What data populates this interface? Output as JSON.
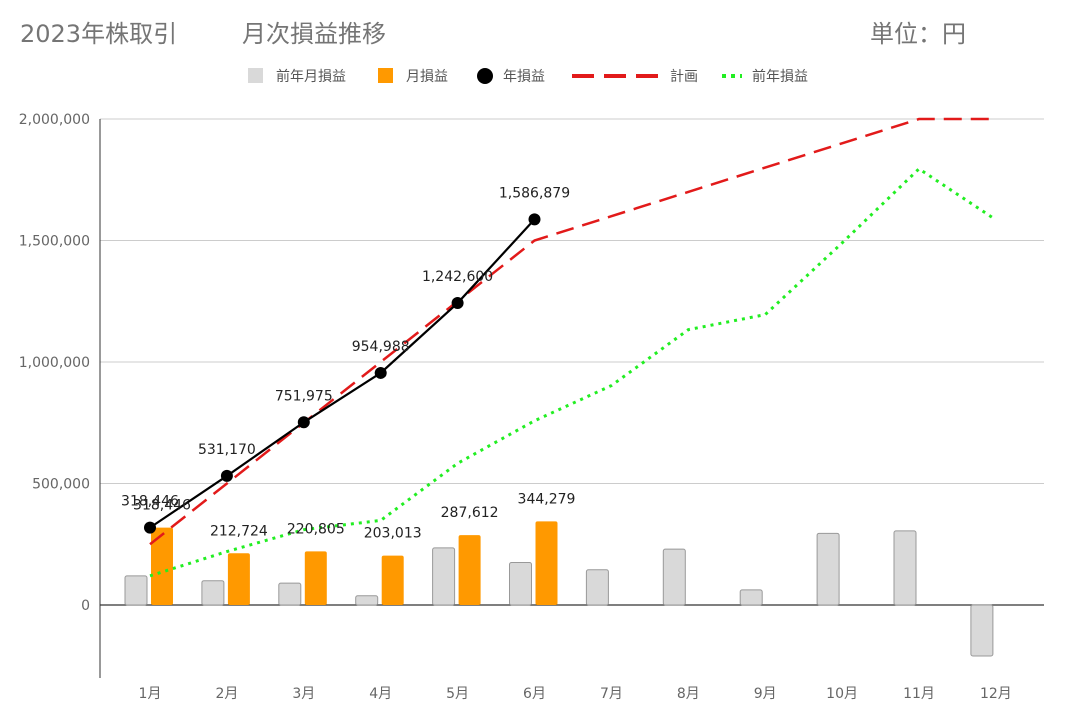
{
  "header": {
    "title": "2023年株取引",
    "subtitle": "月次損益推移",
    "unit": "単位：円"
  },
  "colors": {
    "prev_month": "#d9d9d9",
    "month": "#ff9900",
    "year": "#000000",
    "plan": "#e21a1a",
    "prev_year": "#22ee22"
  },
  "chart_data": {
    "type": "bar",
    "title": "2023年株取引　月次損益推移",
    "unit_label": "単位：円",
    "categories": [
      "1月",
      "2月",
      "3月",
      "4月",
      "5月",
      "6月",
      "7月",
      "8月",
      "9月",
      "10月",
      "11月",
      "12月"
    ],
    "ylim": [
      -300000,
      2000000
    ],
    "yticks": [
      0,
      500000,
      1000000,
      1500000,
      2000000
    ],
    "ytick_labels": [
      "0",
      "500,000",
      "1,000,000",
      "1,500,000",
      "2,000,000"
    ],
    "grid": true,
    "legend_position": "top",
    "series": [
      {
        "name": "前年月損益",
        "type": "bar",
        "values": [
          120000,
          100000,
          90000,
          38000,
          235000,
          175000,
          145000,
          230000,
          62000,
          295000,
          305000,
          -210000
        ]
      },
      {
        "name": "月損益",
        "type": "bar",
        "values": [
          318446,
          212724,
          220805,
          203013,
          287612,
          344279,
          null,
          null,
          null,
          null,
          null,
          null
        ],
        "labels": [
          "318,446",
          "212,724",
          "220,805",
          "203,013",
          "287,612",
          "344,279"
        ]
      },
      {
        "name": "年損益",
        "type": "line-marker",
        "values": [
          318446,
          531170,
          751975,
          954988,
          1242600,
          1586879,
          null,
          null,
          null,
          null,
          null,
          null
        ],
        "labels": [
          "318,446",
          "531,170",
          "751,975",
          "954,988",
          "1,242,600",
          "1,586,879"
        ]
      },
      {
        "name": "計画",
        "type": "line-dashed",
        "values": [
          250000,
          500000,
          750000,
          1000000,
          1250000,
          1500000,
          1600000,
          1700000,
          1800000,
          1900000,
          2000000,
          2000000
        ]
      },
      {
        "name": "前年損益",
        "type": "line-dotted",
        "values": [
          120000,
          220000,
          310000,
          348000,
          583000,
          758000,
          903000,
          1133000,
          1195000,
          1490000,
          1795000,
          1585000
        ]
      }
    ]
  }
}
